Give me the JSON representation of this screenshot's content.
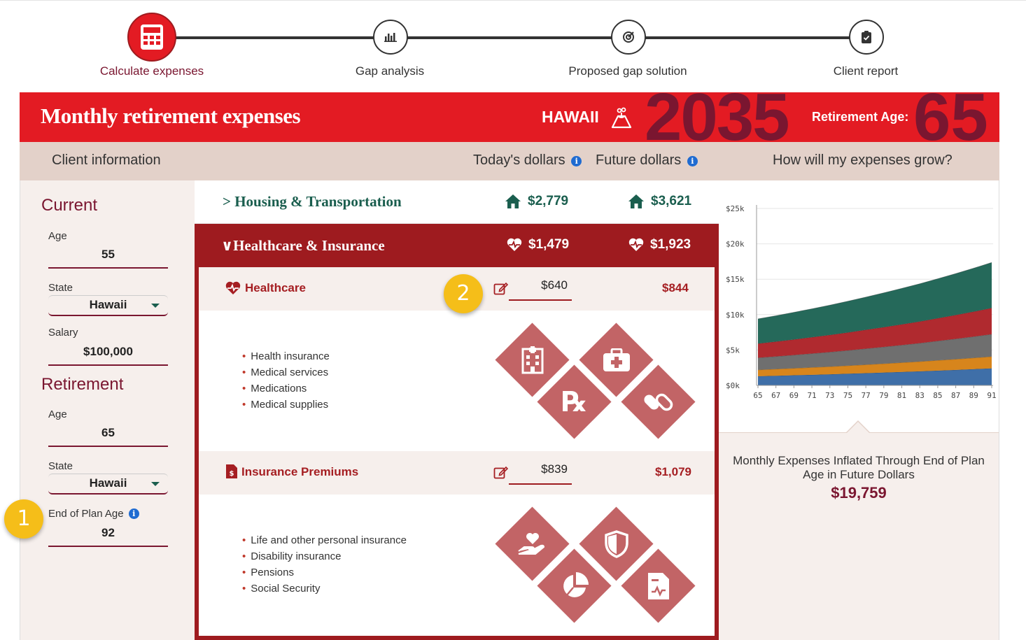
{
  "stepper": {
    "steps": [
      {
        "label": "Calculate expenses",
        "icon": "calculator-icon",
        "active": true
      },
      {
        "label": "Gap analysis",
        "icon": "bar-chart-icon",
        "active": false
      },
      {
        "label": "Proposed gap solution",
        "icon": "target-icon",
        "active": false
      },
      {
        "label": "Client report",
        "icon": "clipboard-check-icon",
        "active": false
      }
    ]
  },
  "banner": {
    "title": "Monthly retirement expenses",
    "state": "HAWAII",
    "state_icon": "volcano-icon",
    "year": "2035",
    "retirement_age_label": "Retirement Age:",
    "retirement_age": "65"
  },
  "headers": {
    "client_info": "Client information",
    "todays_dollars": "Today's dollars",
    "future_dollars": "Future dollars",
    "growth": "How will my expenses grow?",
    "info_glyph": "i"
  },
  "client": {
    "current_heading": "Current",
    "retirement_heading": "Retirement",
    "current": {
      "age_label": "Age",
      "age": "55",
      "state_label": "State",
      "state": "Hawaii",
      "salary_label": "Salary",
      "salary": "$100,000"
    },
    "retirement": {
      "age_label": "Age",
      "age": "65",
      "state_label": "State",
      "state": "Hawaii",
      "end_of_plan_label": "End of Plan Age",
      "end_of_plan_age": "92"
    }
  },
  "categories": {
    "housing": {
      "chevron": ">",
      "title": "Housing & Transportation",
      "today": "$2,779",
      "future": "$3,621",
      "icon": "house-icon"
    },
    "healthcare_insurance": {
      "chevron": "∨",
      "title": "Healthcare & Insurance",
      "today": "$1,479",
      "future": "$1,923",
      "icon": "heart-pulse-icon"
    }
  },
  "subcategories": {
    "healthcare": {
      "title": "Healthcare",
      "today_value": "$640",
      "future": "$844",
      "items": [
        "Health insurance",
        "Medical services",
        "Medications",
        "Medical supplies"
      ],
      "tiles": [
        "hospital-icon",
        "first-aid-kit-icon",
        "prescription-icon",
        "pills-icon"
      ],
      "rx_glyph": "℞"
    },
    "insurance": {
      "title": "Insurance Premiums",
      "today_value": "$839",
      "future": "$1,079",
      "items": [
        "Life and other personal insurance",
        "Disability insurance",
        "Pensions",
        "Social Security"
      ],
      "tiles": [
        "hand-heart-icon",
        "shield-icon",
        "pie-chart-icon",
        "document-icon"
      ]
    }
  },
  "summary": {
    "label": "Monthly Expenses Inflated Through End of Plan Age in Future Dollars",
    "value": "$19,759"
  },
  "badges": [
    "1",
    "2"
  ],
  "colors": {
    "brand_red": "#e31b23",
    "dark_red": "#9e1b1f",
    "maroon": "#7a1630",
    "green": "#1a5e4e",
    "badge_yellow": "#f5be19"
  },
  "chart_data": {
    "type": "area",
    "stacked": true,
    "x": [
      65,
      67,
      69,
      71,
      73,
      75,
      77,
      79,
      81,
      83,
      85,
      87,
      89,
      91
    ],
    "yticks": [
      "$0k",
      "$5k",
      "$10k",
      "$15k",
      "$20k",
      "$25k"
    ],
    "ylim": [
      0,
      25000
    ],
    "grid": true,
    "series": [
      {
        "color": "#3f6fa8",
        "values": [
          1300,
          1360,
          1430,
          1500,
          1570,
          1650,
          1730,
          1810,
          1900,
          1990,
          2090,
          2190,
          2300,
          2410
        ]
      },
      {
        "color": "#d7851c",
        "values": [
          900,
          950,
          990,
          1040,
          1090,
          1140,
          1200,
          1260,
          1320,
          1380,
          1450,
          1520,
          1590,
          1670
        ]
      },
      {
        "color": "#6f6f6f",
        "values": [
          1700,
          1780,
          1870,
          1960,
          2050,
          2150,
          2260,
          2370,
          2480,
          2600,
          2730,
          2860,
          3000,
          3150
        ]
      },
      {
        "color": "#b02a2f",
        "values": [
          2000,
          2100,
          2200,
          2300,
          2420,
          2530,
          2660,
          2790,
          2920,
          3060,
          3210,
          3370,
          3530,
          3700
        ]
      },
      {
        "color": "#25695a",
        "values": [
          3500,
          3660,
          3840,
          4020,
          4210,
          4420,
          4630,
          4850,
          5090,
          5330,
          5590,
          5860,
          6140,
          6440
        ]
      }
    ]
  }
}
